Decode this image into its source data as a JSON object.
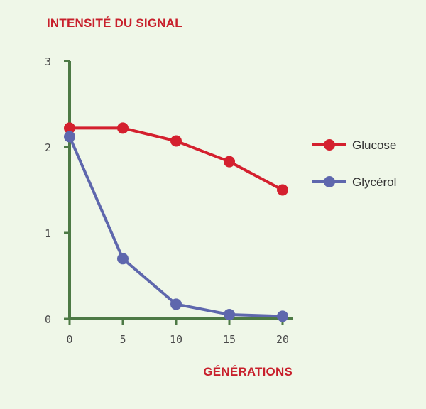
{
  "chart_data": {
    "type": "line",
    "ylabel": "INTENSITÉ DU SIGNAL",
    "xlabel": "GÉNÉRATIONS",
    "x": [
      0,
      5,
      10,
      15,
      20
    ],
    "xticks": [
      "0",
      "5",
      "10",
      "15",
      "20"
    ],
    "yticks": [
      "0",
      "1",
      "2",
      "3"
    ],
    "xlim": [
      0,
      20
    ],
    "ylim": [
      0,
      3
    ],
    "grid": false,
    "legend_position": "right",
    "series": [
      {
        "name": "Glucose",
        "color": "#d4202e",
        "values": [
          2.22,
          2.22,
          2.07,
          1.83,
          1.5
        ]
      },
      {
        "name": "Glycérol",
        "color": "#5e67ad",
        "values": [
          2.12,
          0.7,
          0.17,
          0.05,
          0.03
        ]
      }
    ],
    "colors": {
      "axis": "#4d7a45",
      "title": "#c8202c",
      "background": "#eff7e8"
    }
  }
}
